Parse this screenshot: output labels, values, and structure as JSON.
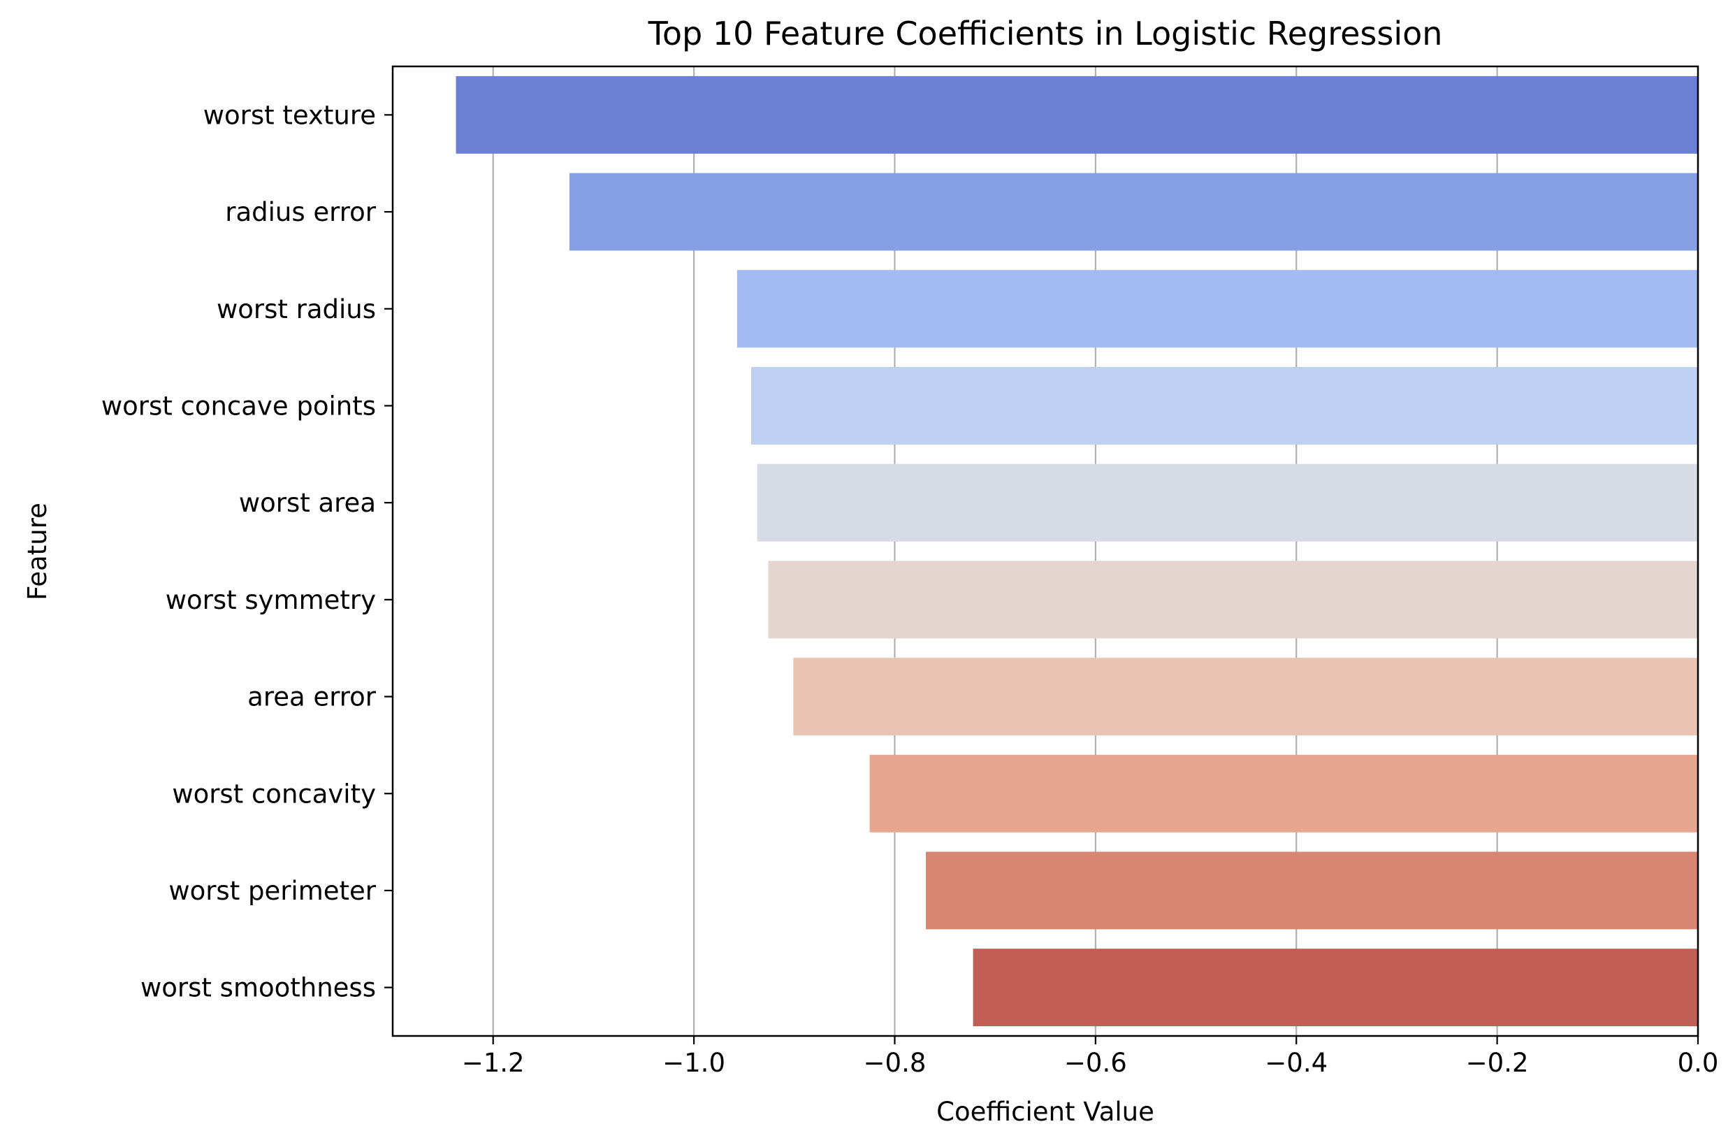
{
  "chart_data": {
    "type": "bar",
    "orientation": "horizontal",
    "title": "Top 10 Feature Coefficients in Logistic Regression",
    "xlabel": "Coefficient Value",
    "ylabel": "Feature",
    "xlim": [
      -1.3,
      0.0
    ],
    "xticks": [
      -1.2,
      -1.0,
      -0.8,
      -0.6,
      -0.4,
      -0.2,
      0.0
    ],
    "xtick_labels": [
      "−1.2",
      "−1.0",
      "−0.8",
      "−0.6",
      "−0.4",
      "−0.2",
      "0.0"
    ],
    "grid": "vertical",
    "categories": [
      "worst texture",
      "radius error",
      "worst radius",
      "worst concave points",
      "worst area",
      "worst symmetry",
      "area error",
      "worst concavity",
      "worst perimeter",
      "worst smoothness"
    ],
    "values": [
      -1.237,
      -1.124,
      -0.957,
      -0.943,
      -0.937,
      -0.926,
      -0.901,
      -0.825,
      -0.769,
      -0.722
    ],
    "colors": [
      "#6b80d2",
      "#87a0e5",
      "#a3bbf2",
      "#bed0f1",
      "#d6dbe6",
      "#e4d6cf",
      "#eac4b2",
      "#e5a790",
      "#d88671",
      "#c06055"
    ]
  }
}
